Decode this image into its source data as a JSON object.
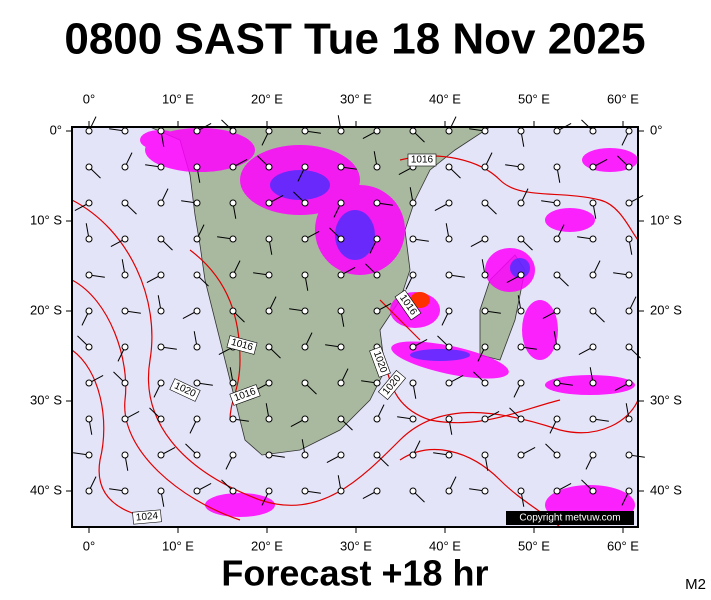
{
  "header": {
    "title": "0800 SAST Tue 18 Nov 2025"
  },
  "footer": {
    "forecast": "Forecast +18 hr",
    "model": "M2"
  },
  "map": {
    "copyright": "Copyright metvuw.com",
    "lon_ticks": [
      {
        "value": 0,
        "label": "0°"
      },
      {
        "value": 10,
        "label": "10° E"
      },
      {
        "value": 20,
        "label": "20° E"
      },
      {
        "value": 30,
        "label": "30° E"
      },
      {
        "value": 40,
        "label": "40° E"
      },
      {
        "value": 50,
        "label": "50° E"
      },
      {
        "value": 60,
        "label": "60° E"
      }
    ],
    "lat_ticks": [
      {
        "value": 0,
        "label": "0°"
      },
      {
        "value": -10,
        "label": "10° S"
      },
      {
        "value": -20,
        "label": "20° S"
      },
      {
        "value": -30,
        "label": "30° S"
      },
      {
        "value": -40,
        "label": "40° S"
      }
    ],
    "isobar_labels": [
      "1016",
      "1016",
      "1016",
      "1016",
      "1020",
      "1020",
      "1020",
      "1024"
    ]
  }
}
